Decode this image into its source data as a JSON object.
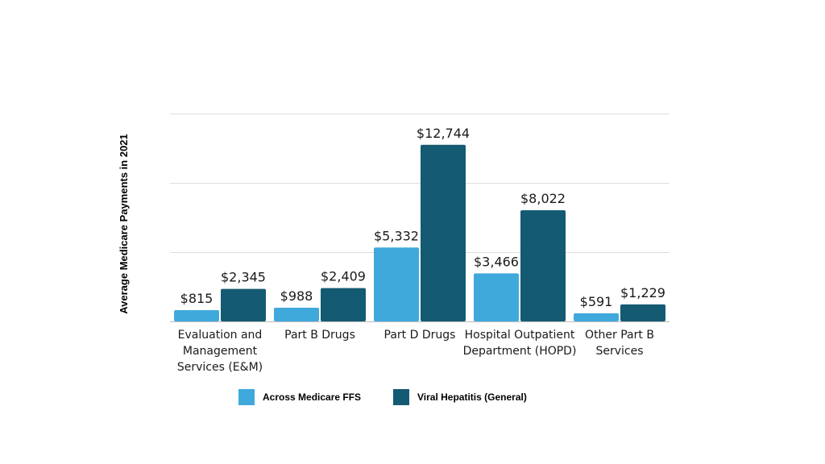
{
  "chart_data": {
    "type": "bar",
    "title": "",
    "xlabel": "",
    "ylabel": "Average Medicare Payments in 2021",
    "categories": [
      [
        "Evaluation and",
        "Management",
        "Services (E&M)"
      ],
      [
        "Part B Drugs"
      ],
      [
        "Part D Drugs"
      ],
      [
        "Hospital Outpatient",
        "Department (HOPD)"
      ],
      [
        "Other Part B",
        "Services"
      ]
    ],
    "series": [
      {
        "name": "Across Medicare FFS",
        "color": "#40a9dc",
        "values": [
          815,
          988,
          5332,
          3466,
          591
        ],
        "labels": [
          "$815",
          "$988",
          "$5,332",
          "$3,466",
          "$591"
        ]
      },
      {
        "name": "Viral Hepatitis (General)",
        "color": "#145a72",
        "values": [
          2345,
          2409,
          12744,
          8022,
          1229
        ],
        "labels": [
          "$2,345",
          "$2,409",
          "$12,744",
          "$8,022",
          "$1,229"
        ]
      }
    ],
    "ylim": [
      0,
      15000
    ],
    "gridlines": [
      0,
      5000,
      10000,
      15000
    ],
    "grid": true,
    "legend_position": "bottom"
  }
}
